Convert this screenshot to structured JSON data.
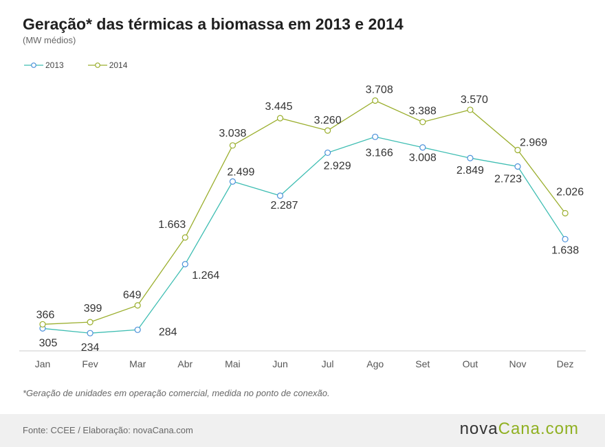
{
  "title": "Geração* das térmicas a biomassa em 2013 e 2014",
  "subtitle": "(MW médios)",
  "footnote": "*Geração de unidades em operação comercial, medida no ponto de conexão.",
  "source": "Fonte: CCEE / Elaboração: novaCana.com",
  "brand": {
    "part1": "nova",
    "part2": "Cana.com"
  },
  "colors": {
    "s2013": "#3dbdb2",
    "s2013_marker": "#4a90d9",
    "s2014": "#9aae2c",
    "axis": "#cccccc"
  },
  "chart_data": {
    "type": "line",
    "categories": [
      "Jan",
      "Fev",
      "Mar",
      "Abr",
      "Mai",
      "Jun",
      "Jul",
      "Ago",
      "Set",
      "Out",
      "Nov",
      "Dez"
    ],
    "series": [
      {
        "name": "2013",
        "values": [
          305,
          234,
          284,
          1264,
          2499,
          2287,
          2929,
          3166,
          3008,
          2849,
          2723,
          1638
        ],
        "labels": [
          "305",
          "234",
          "284",
          "1.264",
          "2.499",
          "2.287",
          "2.929",
          "3.166",
          "3.008",
          "2.849",
          "2.723",
          "1.638"
        ]
      },
      {
        "name": "2014",
        "values": [
          366,
          399,
          649,
          1663,
          3038,
          3445,
          3260,
          3708,
          3388,
          3570,
          2969,
          2026
        ],
        "labels": [
          "366",
          "399",
          "649",
          "1.663",
          "3.038",
          "3.445",
          "3.260",
          "3.708",
          "3.388",
          "3.570",
          "2.969",
          "2.026"
        ]
      }
    ],
    "ylim": [
      0,
      4000
    ],
    "grid": false,
    "legend": "top-left"
  }
}
